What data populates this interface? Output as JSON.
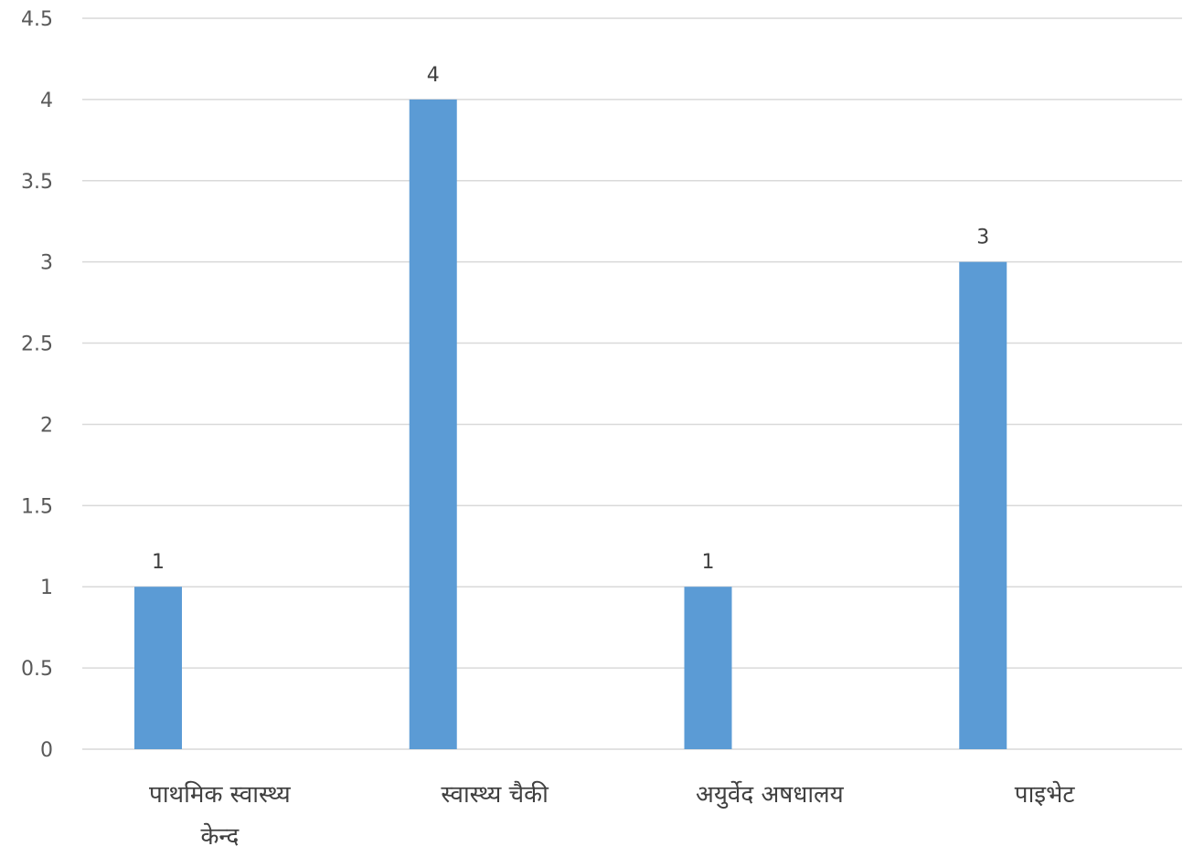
{
  "chart_data": {
    "type": "bar",
    "categories": [
      [
        "पाथमिक स्वास्थ्य",
        "केन्द"
      ],
      [
        "स्वास्थ्य चैकी"
      ],
      [
        "अयुर्वेद अषधालय"
      ],
      [
        "पाइभेट"
      ]
    ],
    "values": [
      1,
      4,
      1,
      3
    ],
    "data_labels": [
      "1",
      "4",
      "1",
      "3"
    ],
    "ylim": [
      0,
      4.5
    ],
    "yticks": [
      0,
      0.5,
      1,
      1.5,
      2,
      2.5,
      3,
      3.5,
      4,
      4.5
    ],
    "ytick_labels": [
      "0",
      "0.5",
      "1",
      "1.5",
      "2",
      "2.5",
      "3",
      "3.5",
      "4",
      "4.5"
    ],
    "grid": true,
    "legend": "none",
    "colors": {
      "bar": "#5B9BD5",
      "grid": "#D9D9D9",
      "axis": "#D9D9D9"
    }
  }
}
